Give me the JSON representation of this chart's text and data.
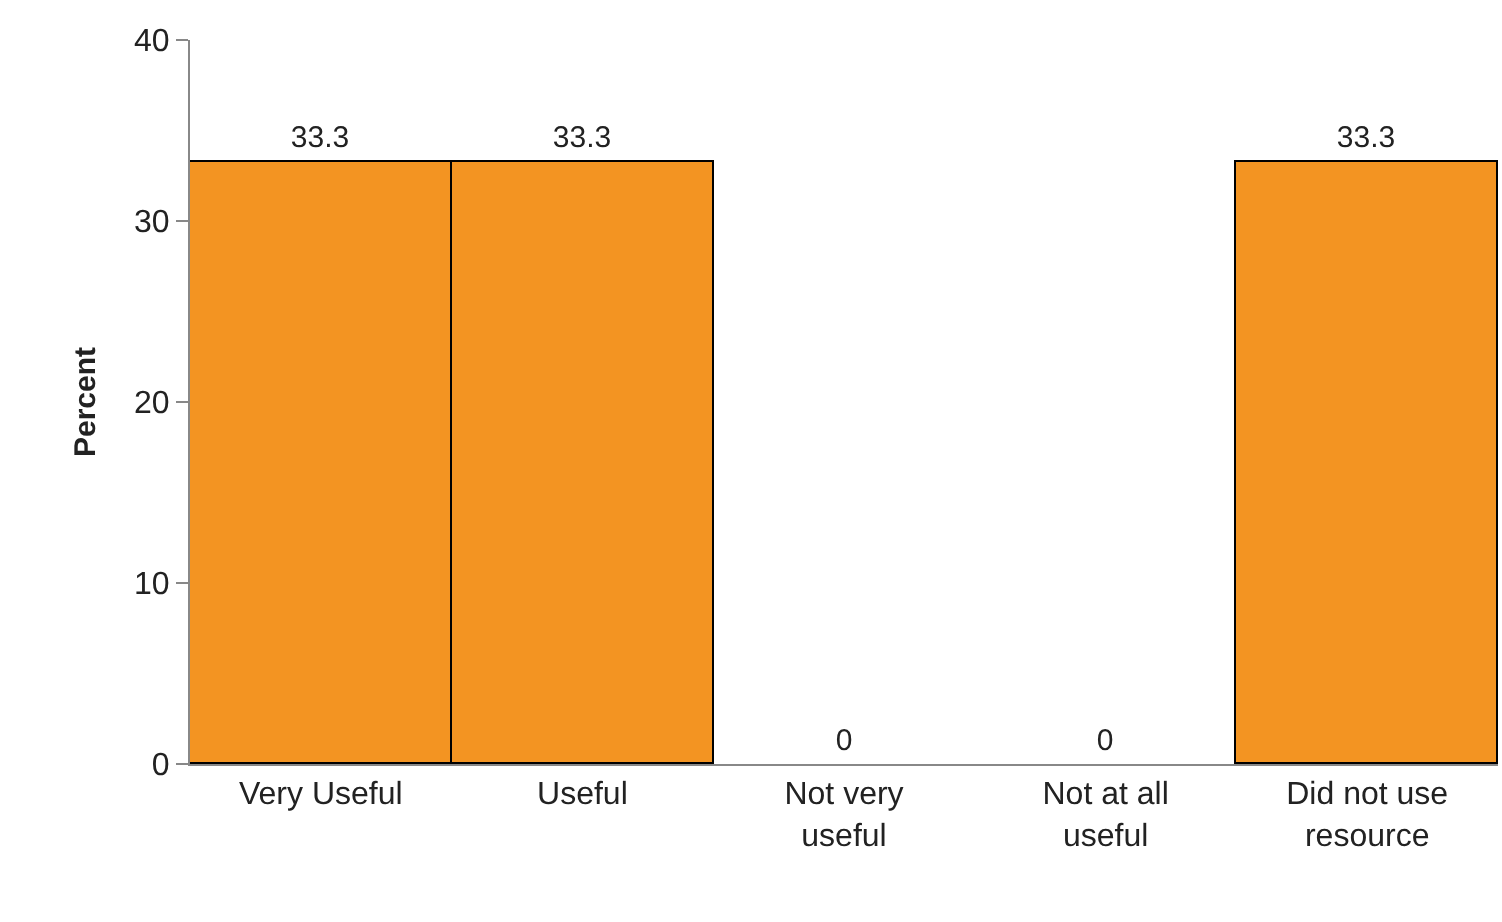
{
  "chart_data": {
    "type": "bar",
    "ylabel": "Percent",
    "categories": [
      "Very Useful",
      "Useful",
      "Not very useful",
      "Not at all useful",
      "Did not use resource"
    ],
    "values": [
      33.3,
      33.3,
      0,
      0,
      33.3
    ],
    "color": "#f39422",
    "ylim": [
      0,
      40
    ],
    "yticks": [
      0,
      10,
      20,
      30,
      40
    ],
    "data_labels": true
  }
}
